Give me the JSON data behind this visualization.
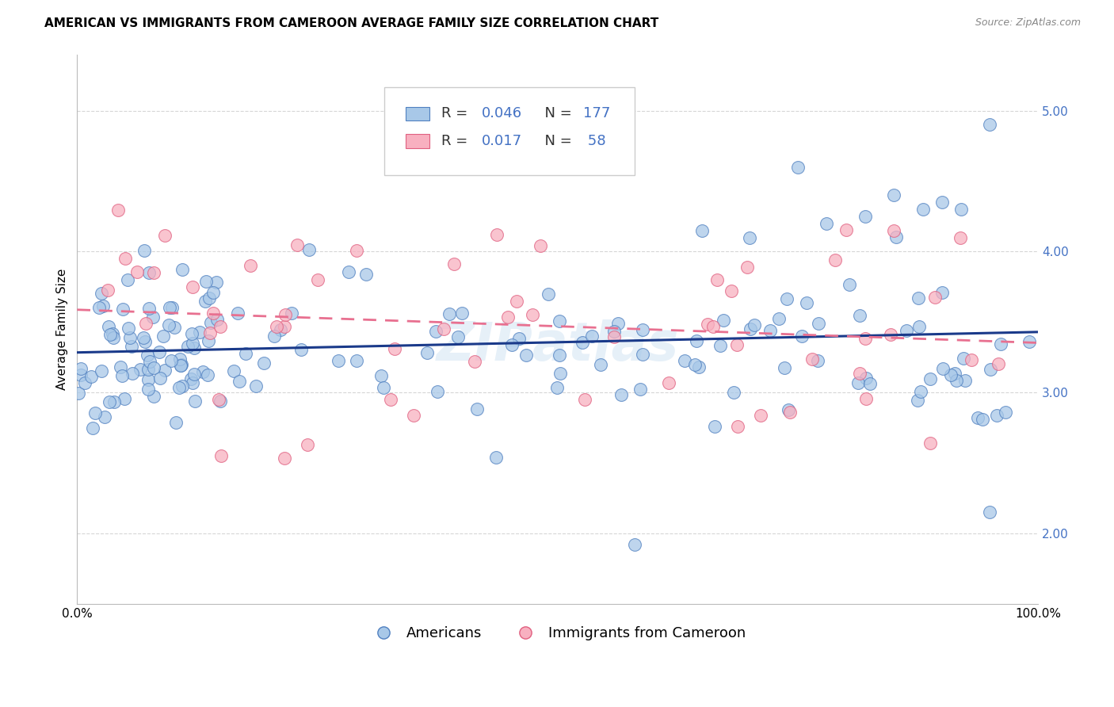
{
  "title": "AMERICAN VS IMMIGRANTS FROM CAMEROON AVERAGE FAMILY SIZE CORRELATION CHART",
  "source": "Source: ZipAtlas.com",
  "ylabel": "Average Family Size",
  "ylim": [
    1.5,
    5.4
  ],
  "xlim": [
    0.0,
    100.0
  ],
  "yticks": [
    2.0,
    3.0,
    4.0,
    5.0
  ],
  "american_color_face": "#a8c8e8",
  "american_color_edge": "#5080c0",
  "cameroon_color_face": "#f8b0c0",
  "cameroon_color_edge": "#e06080",
  "american_line_color": "#1a3a8a",
  "cameroon_line_color": "#e87090",
  "R_american": 0.046,
  "N_american": 177,
  "R_cameroon": 0.017,
  "N_cameroon": 58,
  "grid_color": "#cccccc",
  "background_color": "#ffffff",
  "title_fontsize": 11,
  "axis_label_fontsize": 11,
  "tick_fontsize": 11,
  "ytick_color": "#4472c4",
  "watermark_color": "#b8d4ec",
  "legend_text_color": "#333333",
  "legend_R_color": "#4472c4",
  "legend_N_color": "#4472c4"
}
